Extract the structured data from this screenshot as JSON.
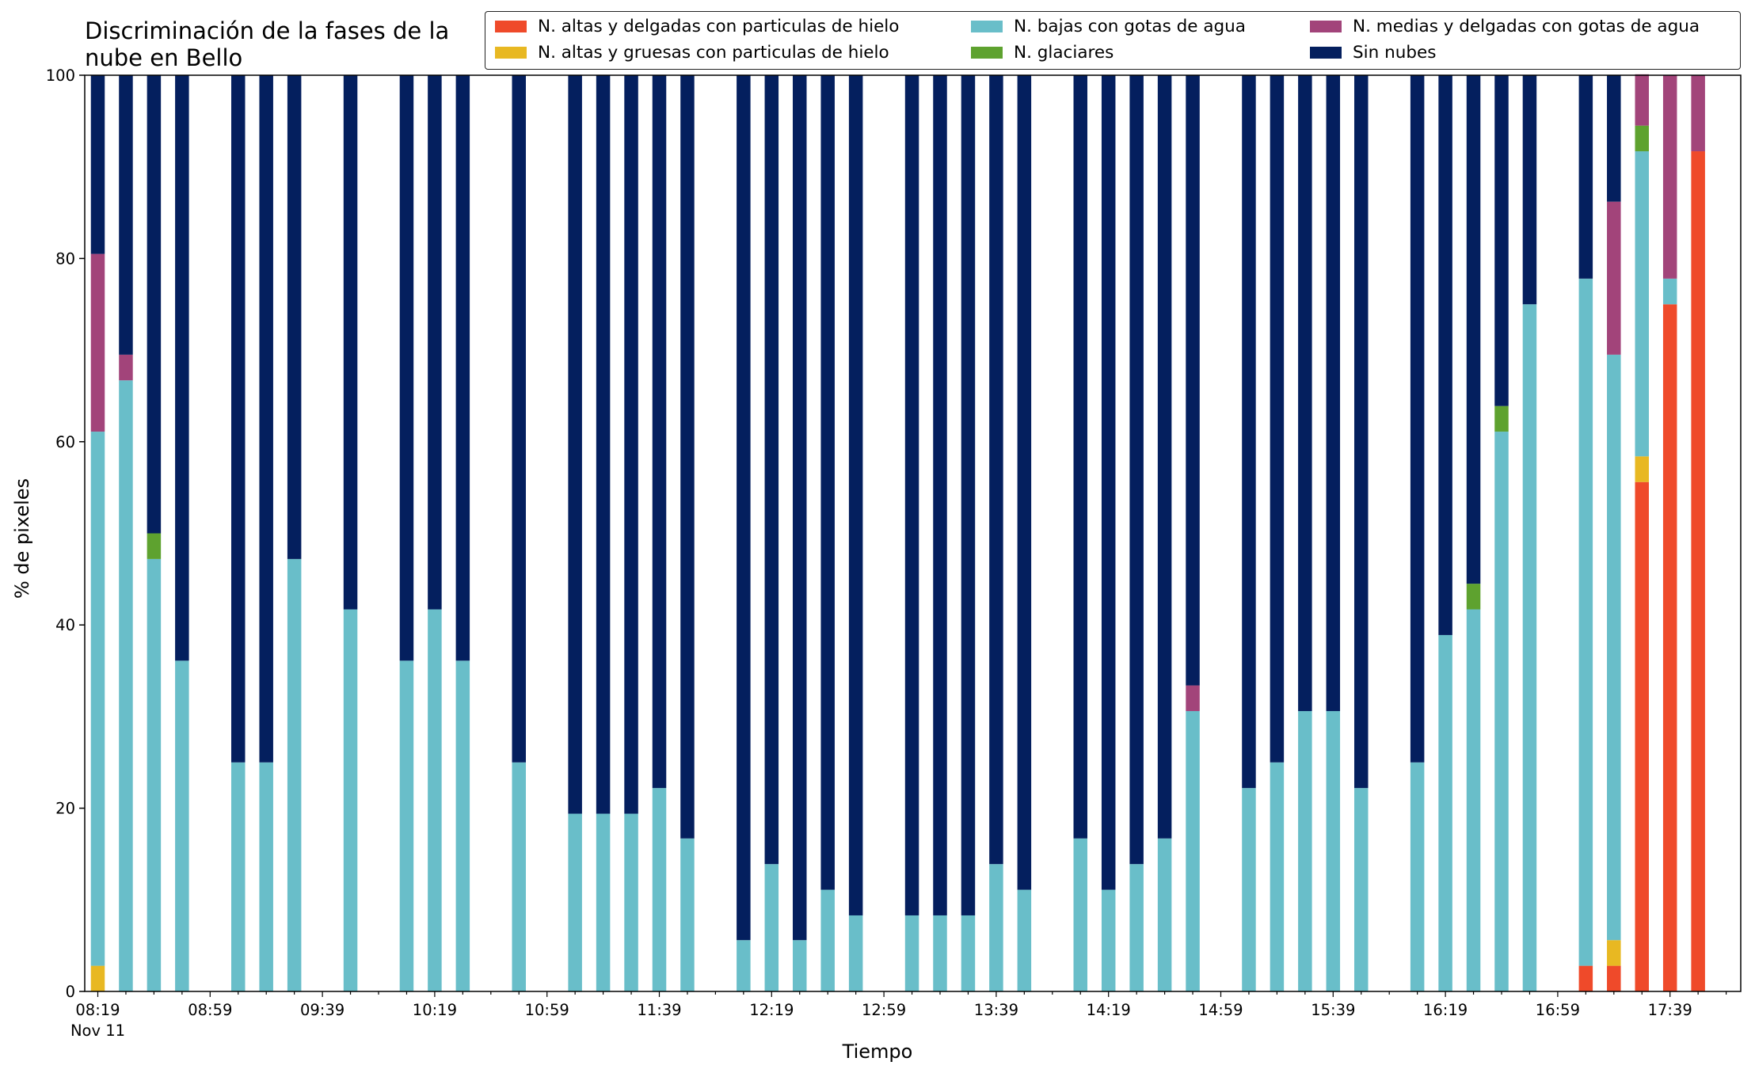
{
  "chart_data": {
    "type": "bar",
    "stacked": true,
    "title": "Discriminación de la fases de la\nnube en Bello",
    "xlabel": "Tiempo",
    "ylabel": "% de pixeles",
    "ylim": [
      0,
      100
    ],
    "yticks": [
      "0",
      "20",
      "40",
      "60",
      "80",
      "100"
    ],
    "xticks": [
      "08:19",
      "08:59",
      "09:39",
      "10:19",
      "10:59",
      "11:39",
      "12:19",
      "12:59",
      "13:39",
      "14:19",
      "14:59",
      "15:39",
      "16:19",
      "16:59",
      "17:39"
    ],
    "xtick_sublabel": "Nov 11",
    "x_start": "08:19",
    "x_step_minutes": 10,
    "legend_position": "top-right",
    "series": [
      {
        "name": "N. altas y delgadas con particulas de hielo",
        "color": "#ef4a2a",
        "values": [
          0,
          0,
          0,
          0,
          null,
          0,
          0,
          0,
          null,
          0,
          null,
          0,
          0,
          0,
          null,
          0,
          null,
          0,
          0,
          0,
          0,
          0,
          null,
          0,
          0,
          0,
          0,
          0,
          null,
          0,
          0,
          0,
          0,
          0,
          null,
          0,
          0,
          0,
          0,
          0,
          null,
          0,
          0,
          0,
          0,
          0,
          null,
          0,
          0,
          0,
          0,
          0,
          null,
          2.8,
          2.8,
          55.6,
          75,
          91.7
        ]
      },
      {
        "name": "N. altas y gruesas con particulas de hielo",
        "color": "#e8b822",
        "values": [
          2.8,
          0,
          0,
          0,
          null,
          0,
          0,
          0,
          null,
          0,
          null,
          0,
          0,
          0,
          null,
          0,
          null,
          0,
          0,
          0,
          0,
          0,
          null,
          0,
          0,
          0,
          0,
          0,
          null,
          0,
          0,
          0,
          0,
          0,
          null,
          0,
          0,
          0,
          0,
          0,
          null,
          0,
          0,
          0,
          0,
          0,
          null,
          0,
          0,
          0,
          0,
          0,
          null,
          0,
          2.8,
          2.8,
          0,
          0
        ]
      },
      {
        "name": "N. bajas con gotas de agua",
        "color": "#69bec9",
        "values": [
          58.3,
          66.7,
          47.2,
          36.1,
          null,
          25,
          25,
          47.2,
          null,
          41.7,
          null,
          36.1,
          41.7,
          36.1,
          null,
          25,
          null,
          19.4,
          19.4,
          19.4,
          22.2,
          16.7,
          null,
          5.6,
          13.9,
          5.6,
          11.1,
          8.3,
          null,
          8.3,
          8.3,
          8.3,
          13.9,
          11.1,
          null,
          16.7,
          11.1,
          13.9,
          16.7,
          30.6,
          null,
          22.2,
          25,
          30.6,
          30.6,
          22.2,
          null,
          25,
          38.9,
          41.7,
          61.1,
          75,
          null,
          75,
          63.9,
          33.3,
          2.8,
          0
        ]
      },
      {
        "name": "N. glaciares",
        "color": "#5ea22f",
        "values": [
          0,
          0,
          2.8,
          0,
          null,
          0,
          0,
          0,
          null,
          0,
          null,
          0,
          0,
          0,
          null,
          0,
          null,
          0,
          0,
          0,
          0,
          0,
          null,
          0,
          0,
          0,
          0,
          0,
          null,
          0,
          0,
          0,
          0,
          0,
          null,
          0,
          0,
          0,
          0,
          0,
          null,
          0,
          0,
          0,
          0,
          0,
          null,
          0,
          0,
          2.8,
          2.8,
          0,
          null,
          0,
          0,
          2.8,
          0,
          0
        ]
      },
      {
        "name": "N. medias y delgadas con gotas de agua",
        "color": "#a2447a",
        "values": [
          19.4,
          2.8,
          0,
          0,
          null,
          0,
          0,
          0,
          null,
          0,
          null,
          0,
          0,
          0,
          null,
          0,
          null,
          0,
          0,
          0,
          0,
          0,
          null,
          0,
          0,
          0,
          0,
          0,
          null,
          0,
          0,
          0,
          0,
          0,
          null,
          0,
          0,
          0,
          0,
          2.8,
          null,
          0,
          0,
          0,
          0,
          0,
          null,
          0,
          0,
          0,
          0,
          0,
          null,
          0,
          16.7,
          5.6,
          22.2,
          8.3
        ]
      },
      {
        "name": "Sin nubes",
        "color": "#041f5e",
        "values": [
          19.5,
          30.5,
          50,
          63.9,
          null,
          75,
          75,
          52.8,
          null,
          58.3,
          null,
          63.9,
          58.3,
          63.9,
          null,
          75,
          null,
          80.6,
          80.6,
          80.6,
          77.8,
          83.3,
          null,
          94.4,
          86.1,
          94.4,
          88.9,
          91.7,
          null,
          91.7,
          91.7,
          91.7,
          86.1,
          88.9,
          null,
          83.3,
          88.9,
          86.1,
          83.3,
          66.6,
          null,
          77.8,
          75,
          69.4,
          69.4,
          77.8,
          null,
          75,
          61.1,
          55.5,
          36.1,
          25,
          null,
          22.2,
          13.8,
          0,
          0,
          0
        ]
      }
    ]
  }
}
